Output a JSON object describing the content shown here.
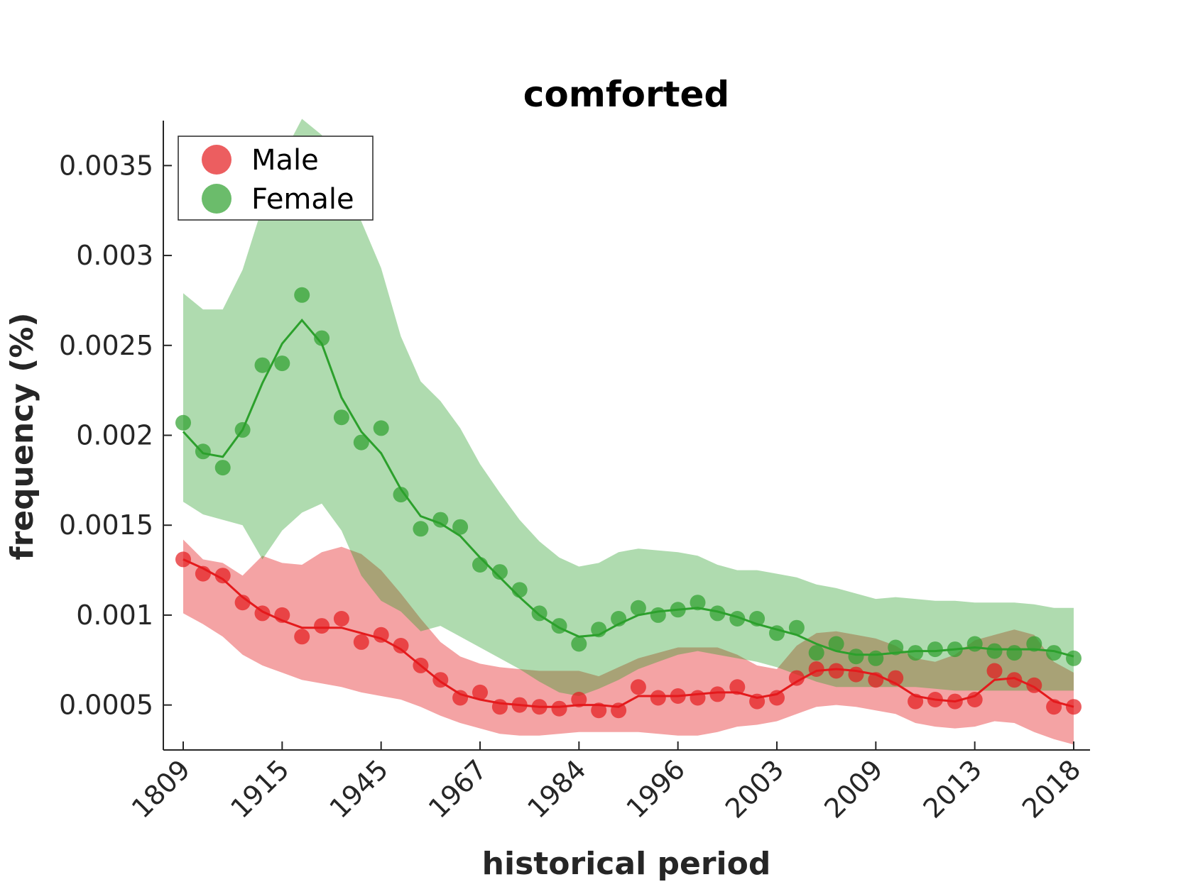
{
  "chart_data": {
    "type": "line",
    "title": "comforted",
    "xlabel": "historical period",
    "ylabel": "frequency (%)",
    "ylim": [
      0.00025,
      0.00375
    ],
    "y_ticks": [
      0.0005,
      0.001,
      0.0015,
      0.002,
      0.0025,
      0.003,
      0.0035
    ],
    "y_tick_labels": [
      "0.0005",
      "0.001",
      "0.0015",
      "0.002",
      "0.0025",
      "0.003",
      "0.0035"
    ],
    "x_tick_indices": [
      0,
      5,
      10,
      15,
      20,
      25,
      30,
      35,
      40,
      45
    ],
    "x_tick_labels": [
      "1809",
      "1915",
      "1945",
      "1967",
      "1984",
      "1996",
      "2003",
      "2009",
      "2013",
      "2018"
    ],
    "legend_position": "top-left",
    "grid": false,
    "series": [
      {
        "name": "Male",
        "color": "#e41a1c",
        "points": [
          0.00131,
          0.00123,
          0.00122,
          0.00107,
          0.00101,
          0.001,
          0.00088,
          0.00094,
          0.00098,
          0.00085,
          0.00089,
          0.00083,
          0.00072,
          0.00064,
          0.00054,
          0.00057,
          0.00049,
          0.0005,
          0.00049,
          0.00048,
          0.00053,
          0.00047,
          0.00047,
          0.0006,
          0.00054,
          0.00055,
          0.00054,
          0.00056,
          0.0006,
          0.00052,
          0.00054,
          0.00065,
          0.0007,
          0.00069,
          0.00067,
          0.00064,
          0.00065,
          0.00052,
          0.00053,
          0.00052,
          0.00053,
          0.00069,
          0.00064,
          0.00061,
          0.00049,
          0.00049
        ],
        "line": [
          0.00131,
          0.00126,
          0.0012,
          0.0011,
          0.00102,
          0.00097,
          0.00093,
          0.00093,
          0.00093,
          0.0009,
          0.00087,
          0.00081,
          0.00072,
          0.00063,
          0.00056,
          0.00053,
          0.00051,
          0.0005,
          0.00049,
          0.00049,
          0.0005,
          0.0005,
          0.00049,
          0.00055,
          0.00055,
          0.00055,
          0.00056,
          0.00057,
          0.00057,
          0.00054,
          0.00056,
          0.00063,
          0.00069,
          0.0007,
          0.00069,
          0.00067,
          0.00062,
          0.00055,
          0.00053,
          0.00052,
          0.00055,
          0.00064,
          0.00065,
          0.0006,
          0.00052,
          0.00049
        ],
        "band_upper": [
          0.00142,
          0.00131,
          0.00129,
          0.00122,
          0.00133,
          0.00129,
          0.00128,
          0.00135,
          0.00138,
          0.00134,
          0.00125,
          0.00112,
          0.00098,
          0.00085,
          0.00077,
          0.00073,
          0.00071,
          0.0007,
          0.00069,
          0.00069,
          0.00069,
          0.00066,
          0.00071,
          0.00076,
          0.00079,
          0.00082,
          0.00082,
          0.00082,
          0.00078,
          0.00072,
          0.0007,
          0.00083,
          0.0009,
          0.00091,
          0.00089,
          0.00087,
          0.00083,
          0.00076,
          0.00074,
          0.00078,
          0.00086,
          0.00089,
          0.00092,
          0.00089,
          0.00074,
          0.00068
        ],
        "band_lower": [
          0.00101,
          0.00095,
          0.00088,
          0.00078,
          0.00072,
          0.00068,
          0.00064,
          0.00062,
          0.0006,
          0.00057,
          0.00055,
          0.00053,
          0.00049,
          0.00044,
          0.0004,
          0.00037,
          0.00034,
          0.00033,
          0.00033,
          0.00034,
          0.00035,
          0.00035,
          0.00035,
          0.00035,
          0.00034,
          0.00033,
          0.00033,
          0.00035,
          0.00038,
          0.00039,
          0.00041,
          0.00045,
          0.00049,
          0.0005,
          0.00049,
          0.00047,
          0.00045,
          0.0004,
          0.00038,
          0.00037,
          0.00038,
          0.00041,
          0.0004,
          0.00035,
          0.00031,
          0.00028
        ]
      },
      {
        "name": "Female",
        "color": "#2ca02c",
        "points": [
          0.00207,
          0.00191,
          0.00182,
          0.00203,
          0.00239,
          0.0024,
          0.00278,
          0.00254,
          0.0021,
          0.00196,
          0.00204,
          0.00167,
          0.00148,
          0.00153,
          0.00149,
          0.00128,
          0.00124,
          0.00114,
          0.00101,
          0.00094,
          0.00084,
          0.00092,
          0.00098,
          0.00104,
          0.001,
          0.00103,
          0.00107,
          0.00101,
          0.00098,
          0.00098,
          0.0009,
          0.00093,
          0.00079,
          0.00084,
          0.00077,
          0.00076,
          0.00082,
          0.00079,
          0.00081,
          0.00081,
          0.00084,
          0.0008,
          0.00079,
          0.00084,
          0.00079,
          0.00076
        ],
        "line": [
          0.00202,
          0.0019,
          0.00188,
          0.00203,
          0.00229,
          0.00251,
          0.00264,
          0.00251,
          0.00221,
          0.00202,
          0.0019,
          0.0017,
          0.00155,
          0.00151,
          0.00144,
          0.00132,
          0.00121,
          0.0011,
          0.001,
          0.00093,
          0.00088,
          0.00089,
          0.00095,
          0.001,
          0.00102,
          0.00103,
          0.00104,
          0.00102,
          0.00099,
          0.00095,
          0.00092,
          0.00089,
          0.00084,
          0.0008,
          0.00078,
          0.00078,
          0.00079,
          0.0008,
          0.0008,
          0.00081,
          0.00082,
          0.00081,
          0.00081,
          0.00081,
          0.0008,
          0.00077
        ],
        "band_upper": [
          0.00279,
          0.0027,
          0.0027,
          0.00292,
          0.00327,
          0.00355,
          0.00376,
          0.00367,
          0.00342,
          0.00319,
          0.00293,
          0.00255,
          0.0023,
          0.00219,
          0.00204,
          0.00184,
          0.00168,
          0.00153,
          0.00141,
          0.00132,
          0.00127,
          0.00129,
          0.00135,
          0.00137,
          0.00136,
          0.00135,
          0.00133,
          0.00128,
          0.00125,
          0.00125,
          0.00123,
          0.00121,
          0.00117,
          0.00115,
          0.00112,
          0.00109,
          0.0011,
          0.00109,
          0.00108,
          0.00108,
          0.00107,
          0.00107,
          0.00107,
          0.00106,
          0.00104,
          0.00104
        ],
        "band_lower": [
          0.00163,
          0.00156,
          0.00153,
          0.0015,
          0.00131,
          0.00147,
          0.00157,
          0.00162,
          0.00147,
          0.00122,
          0.00108,
          0.00102,
          0.00091,
          0.00094,
          0.00088,
          0.00082,
          0.00076,
          0.0007,
          0.00063,
          0.00057,
          0.00055,
          0.00059,
          0.00064,
          0.0007,
          0.00074,
          0.00078,
          0.0008,
          0.00078,
          0.00076,
          0.00074,
          0.00071,
          0.00067,
          0.00063,
          0.0006,
          0.0006,
          0.0006,
          0.0006,
          0.0006,
          0.00059,
          0.00058,
          0.00058,
          0.00058,
          0.00058,
          0.00058,
          0.00058,
          0.00058
        ]
      }
    ]
  }
}
